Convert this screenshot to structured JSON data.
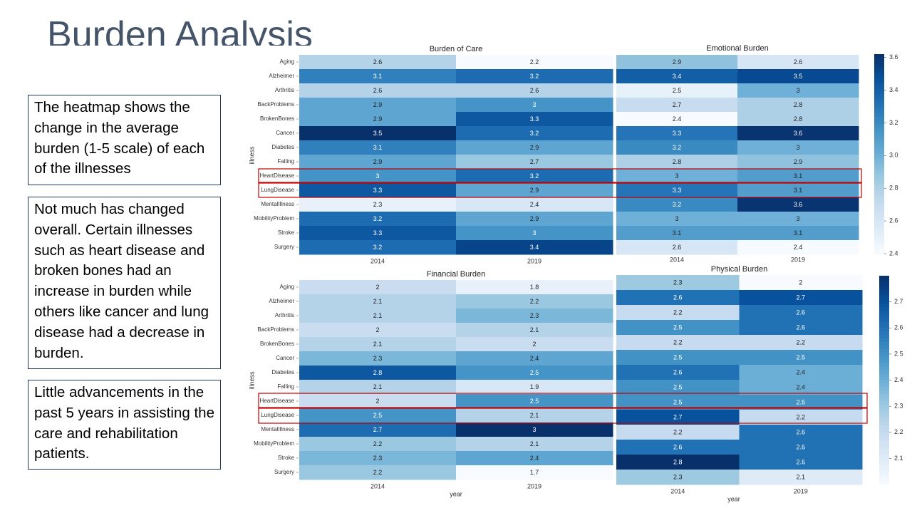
{
  "slide": {
    "title": "Burden Analysis",
    "boxes": [
      "The heatmap shows the change in the average burden (1-5 scale) of each of the illnesses",
      "Not much has changed overall. Certain illnesses such as heart disease and broken bones had an increase in burden while others like cancer and lung disease had a decrease in burden.",
      "Little advancements in the past 5 years in assisting the care and rehabilitation patients."
    ]
  },
  "colors": {
    "highlight": "#c00000",
    "text_box_border": "#1f3864",
    "title": "#44546a"
  },
  "chart_data": [
    {
      "type": "heatmap",
      "title": "Burden of Care",
      "xlabel": "",
      "ylabel": "illness",
      "x_categories": [
        "2014",
        "2019"
      ],
      "y_categories": [
        "Aging",
        "Alzheimer",
        "Arthritis",
        "BackProblems",
        "BrokenBones",
        "Cancer",
        "Diabetes",
        "Falling",
        "HeartDisease",
        "LungDisease",
        "MentalIllness",
        "MobilityProblem",
        "Stroke",
        "Surgery"
      ],
      "values": [
        [
          2.6,
          2.2
        ],
        [
          3.1,
          3.2
        ],
        [
          2.6,
          2.6
        ],
        [
          2.9,
          3
        ],
        [
          2.9,
          3.3
        ],
        [
          3.5,
          3.2
        ],
        [
          3.1,
          2.9
        ],
        [
          2.9,
          2.7
        ],
        [
          3,
          3.2
        ],
        [
          3.3,
          2.9
        ],
        [
          2.3,
          2.4
        ],
        [
          3.2,
          2.9
        ],
        [
          3.3,
          3
        ],
        [
          3.2,
          3.4
        ]
      ],
      "highlighted_rows": [
        "HeartDisease",
        "LungDisease"
      ]
    },
    {
      "type": "heatmap",
      "title": "Emotional Burden",
      "x_categories": [
        "2014",
        "2019"
      ],
      "values": [
        [
          2.9,
          2.6
        ],
        [
          3.4,
          3.5
        ],
        [
          2.5,
          3
        ],
        [
          2.7,
          2.8
        ],
        [
          2.4,
          2.8
        ],
        [
          3.3,
          3.6
        ],
        [
          3.2,
          3
        ],
        [
          2.8,
          2.9
        ],
        [
          3,
          3.1
        ],
        [
          3.3,
          3.1
        ],
        [
          3.2,
          3.6
        ],
        [
          3,
          3
        ],
        [
          3.1,
          3.1
        ],
        [
          2.6,
          2.4
        ]
      ],
      "colorbar": {
        "ticks": [
          "3.6",
          "3.4",
          "3.2",
          "3.0",
          "2.8",
          "2.6",
          "2.4"
        ],
        "range": [
          2.4,
          3.62
        ]
      }
    },
    {
      "type": "heatmap",
      "title": "Financial Burden",
      "xlabel": "year",
      "ylabel": "illness",
      "x_categories": [
        "2014",
        "2019"
      ],
      "y_categories": [
        "Aging",
        "Alzheimer",
        "Arthritis",
        "BackProblems",
        "BrokenBones",
        "Cancer",
        "Diabetes",
        "Falling",
        "HeartDisease",
        "LungDisease",
        "MentalIllness",
        "MobilityProblem",
        "Stroke",
        "Surgery"
      ],
      "values": [
        [
          2,
          1.8
        ],
        [
          2.1,
          2.2
        ],
        [
          2.1,
          2.3
        ],
        [
          2,
          2.1
        ],
        [
          2.1,
          2
        ],
        [
          2.3,
          2.4
        ],
        [
          2.8,
          2.5
        ],
        [
          2.1,
          1.9
        ],
        [
          2,
          2.5
        ],
        [
          2.5,
          2.1
        ],
        [
          2.7,
          3
        ],
        [
          2.2,
          2.1
        ],
        [
          2.3,
          2.4
        ],
        [
          2.2,
          1.7
        ]
      ],
      "value_range": [
        1.7,
        3.0
      ]
    },
    {
      "type": "heatmap",
      "title": "Physical Burden",
      "xlabel": "year",
      "x_categories": [
        "2014",
        "2019"
      ],
      "values": [
        [
          2.3,
          2
        ],
        [
          2.6,
          2.7
        ],
        [
          2.2,
          2.6
        ],
        [
          2.5,
          2.6
        ],
        [
          2.2,
          2.2
        ],
        [
          2.5,
          2.5
        ],
        [
          2.6,
          2.4
        ],
        [
          2.5,
          2.4
        ],
        [
          2.5,
          2.5
        ],
        [
          2.7,
          2.2
        ],
        [
          2.2,
          2.6
        ],
        [
          2.6,
          2.6
        ],
        [
          2.8,
          2.6
        ],
        [
          2.3,
          2.1
        ]
      ],
      "colorbar": {
        "ticks": [
          "2.7",
          "2.6",
          "2.5",
          "2.4",
          "2.3",
          "2.2",
          "2.1"
        ],
        "range": [
          2.0,
          2.8
        ]
      }
    }
  ]
}
